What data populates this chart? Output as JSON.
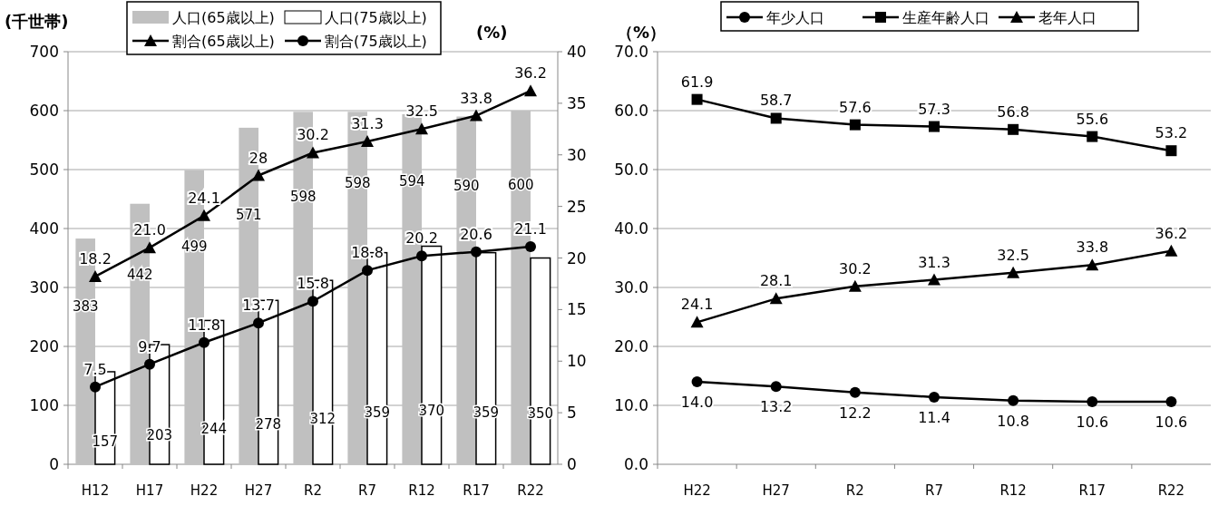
{
  "chart_data": [
    {
      "type": "bar",
      "ylabel": "(千世帯)",
      "y2label": "(%)",
      "categories": [
        "H12",
        "H17",
        "H22",
        "H27",
        "R2",
        "R7",
        "R12",
        "R17",
        "R22"
      ],
      "series": [
        {
          "name": "人口(65歳以上)",
          "color": "#c0c0c0",
          "values": [
            383,
            442,
            499,
            571,
            598,
            598,
            594,
            590,
            600
          ],
          "value_labels": [
            "383",
            "442",
            "499",
            "571",
            "598",
            "598",
            "594",
            "590",
            "600"
          ]
        },
        {
          "name": "人口(75歳以上)",
          "color": "#ffffff",
          "values": [
            157,
            203,
            244,
            278,
            312,
            359,
            370,
            359,
            350
          ],
          "value_labels": [
            "157",
            "203",
            "244",
            "278",
            "312",
            "359",
            "370",
            "359",
            "350"
          ]
        },
        {
          "name": "割合(65歳以上)",
          "type": "line",
          "axis": "y2",
          "marker": "triangle",
          "color": "#000000",
          "values": [
            18.2,
            21.0,
            24.1,
            28,
            30.2,
            31.3,
            32.5,
            33.8,
            36.2
          ],
          "value_labels": [
            "18.2",
            "21.0",
            "24.1",
            "28",
            "30.2",
            "31.3",
            "32.5",
            "33.8",
            "36.2"
          ]
        },
        {
          "name": "割合(75歳以上)",
          "type": "line",
          "axis": "y2",
          "marker": "circle",
          "color": "#000000",
          "values": [
            7.5,
            9.7,
            11.8,
            13.7,
            15.8,
            18.8,
            20.2,
            20.6,
            21.1
          ],
          "value_labels": [
            "7.5",
            "9.7",
            "11.8",
            "13.7",
            "15.8",
            "18.8",
            "20.2",
            "20.6",
            "21.1"
          ]
        }
      ],
      "ylim": [
        0,
        700
      ],
      "yticks": [
        0,
        100,
        200,
        300,
        400,
        500,
        600,
        700
      ],
      "y2lim": [
        0,
        40
      ],
      "y2ticks": [
        0,
        5,
        10,
        15,
        20,
        25,
        30,
        35,
        40
      ],
      "grid": "y",
      "legend": "top"
    },
    {
      "type": "line",
      "ylabel": "（%）",
      "categories": [
        "H22",
        "H27",
        "R2",
        "R7",
        "R12",
        "R17",
        "R22"
      ],
      "series": [
        {
          "name": "年少人口",
          "marker": "circle",
          "color": "#000000",
          "values": [
            14.0,
            13.2,
            12.2,
            11.4,
            10.8,
            10.6,
            10.6
          ],
          "value_labels": [
            "14.0",
            "13.2",
            "12.2",
            "11.4",
            "10.8",
            "10.6",
            "10.6"
          ]
        },
        {
          "name": "生産年齢人口",
          "marker": "square",
          "color": "#000000",
          "values": [
            61.9,
            58.7,
            57.6,
            57.3,
            56.8,
            55.6,
            53.2
          ],
          "value_labels": [
            "61.9",
            "58.7",
            "57.6",
            "57.3",
            "56.8",
            "55.6",
            "53.2"
          ]
        },
        {
          "name": "老年人口",
          "marker": "triangle",
          "color": "#000000",
          "values": [
            24.1,
            28.1,
            30.2,
            31.3,
            32.5,
            33.8,
            36.2
          ],
          "value_labels": [
            "24.1",
            "28.1",
            "30.2",
            "31.3",
            "32.5",
            "33.8",
            "36.2"
          ]
        }
      ],
      "ylim": [
        0,
        70
      ],
      "yticks": [
        {
          "value": 0,
          "label": "0.0"
        },
        {
          "value": 10,
          "label": "10.0"
        },
        {
          "value": 20,
          "label": "20.0"
        },
        {
          "value": 30,
          "label": "30.0"
        },
        {
          "value": 40,
          "label": "40.0"
        },
        {
          "value": 50,
          "label": "50.0"
        },
        {
          "value": 60,
          "label": "60.0"
        },
        {
          "value": 70,
          "label": "70.0"
        }
      ],
      "grid": "y",
      "legend": "top"
    }
  ]
}
